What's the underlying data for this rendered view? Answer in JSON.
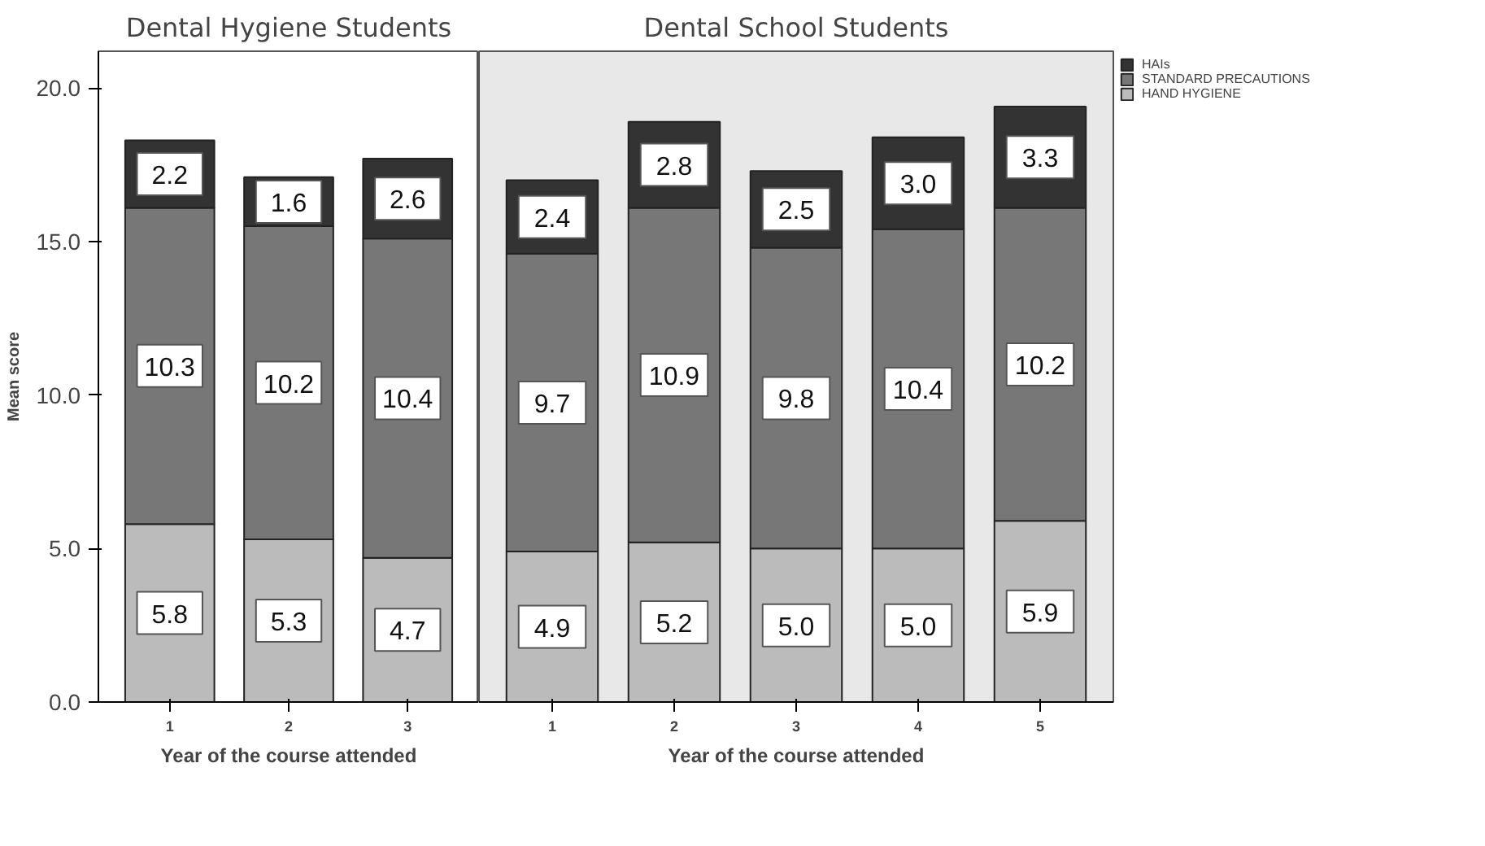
{
  "chart_data": [
    {
      "type": "bar",
      "title": "Dental Hygiene Students",
      "xlabel": "Year of the course attended",
      "ylabel": "Mean score",
      "categories": [
        "1",
        "2",
        "3"
      ],
      "stacked": true,
      "grid": false,
      "ylim": [
        0,
        21.2
      ],
      "yticks": [
        {
          "value": 0,
          "label": "0.0"
        },
        {
          "value": 5,
          "label": "5.0"
        },
        {
          "value": 10,
          "label": "10.0"
        },
        {
          "value": 15,
          "label": "15.0"
        },
        {
          "value": 20,
          "label": "20.0"
        }
      ],
      "series": [
        {
          "color": "#bbbbbb",
          "values": [
            5.8,
            5.3,
            4.7
          ],
          "value_labels": [
            "5.8",
            "5.3",
            "4.7"
          ]
        },
        {
          "color": "#777777",
          "values": [
            10.3,
            10.2,
            10.4
          ],
          "value_labels": [
            "10.3",
            "10.2",
            "10.4"
          ]
        },
        {
          "color": "#333333",
          "values": [
            2.2,
            1.6,
            2.6
          ],
          "value_labels": [
            "2.2",
            "1.6",
            "2.6"
          ]
        }
      ]
    },
    {
      "type": "bar",
      "title": "Dental School Students",
      "xlabel": "Year of the course attended",
      "categories": [
        "1",
        "2",
        "3",
        "4",
        "5"
      ],
      "stacked": true,
      "legend": "top right",
      "grid": false,
      "tick_labels": "x",
      "ylim": [
        0,
        21.2
      ],
      "series": [
        {
          "name": "HAND HYGIENE",
          "color": "#bbbbbb",
          "values": [
            4.9,
            5.2,
            5.0,
            5.0,
            5.9
          ],
          "value_labels": [
            "4.9",
            "5.2",
            "5.0",
            "5.0",
            "5.9"
          ]
        },
        {
          "name": "STANDARD PRECAUTIONS",
          "color": "#777777",
          "values": [
            9.7,
            10.9,
            9.8,
            10.4,
            10.2
          ],
          "value_labels": [
            "9.7",
            "10.9",
            "9.8",
            "10.4",
            "10.2"
          ]
        },
        {
          "name": "HAIs",
          "color": "#333333",
          "values": [
            2.4,
            2.8,
            2.5,
            3.0,
            3.3
          ],
          "value_labels": [
            "2.4",
            "2.8",
            "2.5",
            "3.0",
            "3.3"
          ]
        }
      ]
    }
  ]
}
